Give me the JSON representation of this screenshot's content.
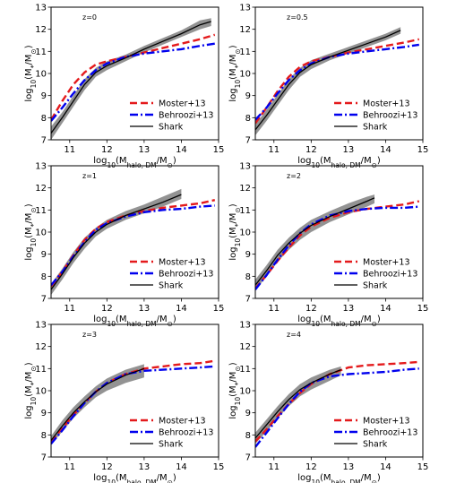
{
  "chart_data": [
    {
      "type": "line",
      "annotation": "z=0",
      "xlabel": "log10(Mhalo, DM/M⊙)",
      "ylabel": "log10(M*/M⊙)",
      "xlim": [
        10.5,
        15
      ],
      "ylim": [
        7,
        13
      ],
      "xticks": [
        11,
        12,
        13,
        14,
        15
      ],
      "yticks": [
        7,
        8,
        9,
        10,
        11,
        12,
        13
      ],
      "legend_position": "lower-right",
      "series": [
        {
          "name": "Moster+13",
          "color": "#e41a1c",
          "style": "dashed",
          "x": [
            10.5,
            10.8,
            11.1,
            11.4,
            11.7,
            12.0,
            12.5,
            13.0,
            13.5,
            14.0,
            14.5,
            14.9
          ],
          "y": [
            7.9,
            8.75,
            9.5,
            10.05,
            10.4,
            10.55,
            10.75,
            10.95,
            11.15,
            11.35,
            11.55,
            11.75
          ]
        },
        {
          "name": "Behroozi+13",
          "color": "#0000ee",
          "style": "dashdot",
          "x": [
            10.5,
            10.8,
            11.1,
            11.4,
            11.7,
            12.0,
            12.5,
            13.0,
            13.5,
            14.0,
            14.5,
            14.9
          ],
          "y": [
            7.85,
            8.45,
            9.1,
            9.7,
            10.15,
            10.45,
            10.75,
            10.9,
            11.0,
            11.1,
            11.25,
            11.35
          ]
        },
        {
          "name": "Shark",
          "color": "#000000",
          "style": "solid",
          "x": [
            10.5,
            10.8,
            11.1,
            11.4,
            11.7,
            12.0,
            12.5,
            13.0,
            13.5,
            14.0,
            14.5,
            14.8
          ],
          "y": [
            7.3,
            8.0,
            8.75,
            9.5,
            10.05,
            10.35,
            10.7,
            11.1,
            11.45,
            11.8,
            12.2,
            12.35
          ],
          "band_lower": [
            7.0,
            7.75,
            8.5,
            9.25,
            9.85,
            10.15,
            10.55,
            10.95,
            11.3,
            11.65,
            12.0,
            12.15
          ],
          "band_upper": [
            7.6,
            8.25,
            9.0,
            9.75,
            10.25,
            10.55,
            10.85,
            11.25,
            11.6,
            11.95,
            12.4,
            12.5
          ]
        }
      ]
    },
    {
      "type": "line",
      "annotation": "z=0.5",
      "xlabel": "log10(Mhalo, DM/M⊙)",
      "ylabel": "log10(M*/M⊙)",
      "xlim": [
        10.5,
        15
      ],
      "ylim": [
        7,
        13
      ],
      "xticks": [
        11,
        12,
        13,
        14,
        15
      ],
      "yticks": [
        7,
        8,
        9,
        10,
        11,
        12,
        13
      ],
      "legend_position": "lower-right",
      "series": [
        {
          "name": "Moster+13",
          "color": "#e41a1c",
          "style": "dashed",
          "x": [
            10.5,
            10.8,
            11.1,
            11.4,
            11.7,
            12.0,
            12.5,
            13.0,
            13.5,
            14.0,
            14.5,
            14.9
          ],
          "y": [
            7.75,
            8.45,
            9.2,
            9.85,
            10.3,
            10.55,
            10.75,
            10.95,
            11.1,
            11.25,
            11.4,
            11.55
          ]
        },
        {
          "name": "Behroozi+13",
          "color": "#0000ee",
          "style": "dashdot",
          "x": [
            10.5,
            10.8,
            11.1,
            11.4,
            11.7,
            12.0,
            12.5,
            13.0,
            13.5,
            14.0,
            14.5,
            14.9
          ],
          "y": [
            7.9,
            8.45,
            9.1,
            9.7,
            10.15,
            10.45,
            10.75,
            10.9,
            11.0,
            11.1,
            11.2,
            11.3
          ]
        },
        {
          "name": "Shark",
          "color": "#000000",
          "style": "solid",
          "x": [
            10.5,
            10.8,
            11.1,
            11.4,
            11.7,
            12.0,
            12.5,
            13.0,
            13.5,
            14.0,
            14.4
          ],
          "y": [
            7.45,
            8.1,
            8.8,
            9.5,
            10.05,
            10.4,
            10.75,
            11.05,
            11.35,
            11.65,
            11.95
          ],
          "band_lower": [
            7.2,
            7.85,
            8.55,
            9.25,
            9.85,
            10.2,
            10.6,
            10.9,
            11.2,
            11.5,
            11.8
          ],
          "band_upper": [
            7.7,
            8.35,
            9.05,
            9.75,
            10.25,
            10.6,
            10.9,
            11.2,
            11.5,
            11.8,
            12.1
          ]
        }
      ]
    },
    {
      "type": "line",
      "annotation": "z=1",
      "xlabel": "log10(Mhalo, DM/M⊙)",
      "ylabel": "log10(M*/M⊙)",
      "xlim": [
        10.5,
        15
      ],
      "ylim": [
        7,
        13
      ],
      "xticks": [
        11,
        12,
        13,
        14,
        15
      ],
      "yticks": [
        7,
        8,
        9,
        10,
        11,
        12,
        13
      ],
      "legend_position": "lower-right",
      "series": [
        {
          "name": "Moster+13",
          "color": "#e41a1c",
          "style": "dashed",
          "x": [
            10.5,
            10.8,
            11.1,
            11.4,
            11.7,
            12.0,
            12.5,
            13.0,
            13.5,
            14.0,
            14.5,
            14.9
          ],
          "y": [
            7.55,
            8.2,
            8.95,
            9.65,
            10.15,
            10.45,
            10.75,
            10.95,
            11.1,
            11.2,
            11.3,
            11.45
          ]
        },
        {
          "name": "Behroozi+13",
          "color": "#0000ee",
          "style": "dashdot",
          "x": [
            10.5,
            10.8,
            11.1,
            11.4,
            11.7,
            12.0,
            12.5,
            13.0,
            13.5,
            14.0,
            14.5,
            14.9
          ],
          "y": [
            7.6,
            8.2,
            8.9,
            9.55,
            10.1,
            10.4,
            10.7,
            10.9,
            11.0,
            11.05,
            11.15,
            11.2
          ]
        },
        {
          "name": "Shark",
          "color": "#000000",
          "style": "solid",
          "x": [
            10.5,
            10.8,
            11.1,
            11.4,
            11.7,
            12.0,
            12.5,
            13.0,
            13.5,
            14.0
          ],
          "y": [
            7.4,
            8.1,
            8.85,
            9.5,
            10.0,
            10.35,
            10.75,
            11.05,
            11.35,
            11.7
          ],
          "band_lower": [
            7.15,
            7.85,
            8.6,
            9.25,
            9.8,
            10.15,
            10.55,
            10.85,
            11.15,
            11.5
          ],
          "band_upper": [
            7.65,
            8.35,
            9.1,
            9.75,
            10.2,
            10.55,
            10.95,
            11.25,
            11.6,
            11.95
          ]
        }
      ]
    },
    {
      "type": "line",
      "annotation": "z=2",
      "xlabel": "log10(Mhalo, DM/M⊙)",
      "ylabel": "log10(M*/M⊙)",
      "xlim": [
        10.5,
        15
      ],
      "ylim": [
        7,
        13
      ],
      "xticks": [
        11,
        12,
        13,
        14,
        15
      ],
      "yticks": [
        7,
        8,
        9,
        10,
        11,
        12,
        13
      ],
      "legend_position": "lower-right",
      "series": [
        {
          "name": "Moster+13",
          "color": "#e41a1c",
          "style": "dashed",
          "x": [
            10.5,
            10.8,
            11.1,
            11.4,
            11.7,
            12.0,
            12.5,
            13.0,
            13.5,
            14.0,
            14.5,
            14.9
          ],
          "y": [
            7.45,
            8.05,
            8.7,
            9.3,
            9.85,
            10.25,
            10.65,
            10.9,
            11.05,
            11.15,
            11.25,
            11.4
          ]
        },
        {
          "name": "Behroozi+13",
          "color": "#0000ee",
          "style": "dashdot",
          "x": [
            10.5,
            10.8,
            11.1,
            11.4,
            11.7,
            12.0,
            12.5,
            13.0,
            13.5,
            14.0,
            14.5,
            14.9
          ],
          "y": [
            7.4,
            8.05,
            8.75,
            9.4,
            9.95,
            10.35,
            10.75,
            10.95,
            11.05,
            11.1,
            11.1,
            11.15
          ]
        },
        {
          "name": "Shark",
          "color": "#000000",
          "style": "solid",
          "x": [
            10.5,
            10.8,
            11.1,
            11.4,
            11.7,
            12.0,
            12.5,
            13.0,
            13.5,
            13.7
          ],
          "y": [
            7.6,
            8.25,
            8.95,
            9.5,
            9.95,
            10.3,
            10.7,
            11.05,
            11.4,
            11.55
          ],
          "band_lower": [
            7.35,
            8.0,
            8.65,
            9.2,
            9.65,
            10.0,
            10.45,
            10.8,
            11.15,
            11.3
          ],
          "band_upper": [
            7.85,
            8.5,
            9.2,
            9.75,
            10.2,
            10.55,
            10.95,
            11.3,
            11.6,
            11.7
          ]
        }
      ]
    },
    {
      "type": "line",
      "annotation": "z=3",
      "xlabel": "log10(Mhalo, DM/M⊙)",
      "ylabel": "log10(M*/M⊙)",
      "xlim": [
        10.5,
        15
      ],
      "ylim": [
        7,
        13
      ],
      "xticks": [
        11,
        12,
        13,
        14,
        15
      ],
      "yticks": [
        7,
        8,
        9,
        10,
        11,
        12,
        13
      ],
      "legend_position": "lower-right",
      "series": [
        {
          "name": "Moster+13",
          "color": "#e41a1c",
          "style": "dashed",
          "x": [
            10.5,
            10.8,
            11.1,
            11.4,
            11.7,
            12.0,
            12.5,
            13.0,
            13.5,
            14.0,
            14.5,
            14.9
          ],
          "y": [
            7.7,
            8.3,
            8.9,
            9.45,
            9.95,
            10.35,
            10.75,
            11.0,
            11.1,
            11.2,
            11.25,
            11.35
          ]
        },
        {
          "name": "Behroozi+13",
          "color": "#0000ee",
          "style": "dashdot",
          "x": [
            10.5,
            10.8,
            11.1,
            11.4,
            11.7,
            12.0,
            12.5,
            13.0,
            13.5,
            14.0,
            14.5,
            14.9
          ],
          "y": [
            7.6,
            8.2,
            8.85,
            9.45,
            9.95,
            10.35,
            10.75,
            10.9,
            10.95,
            11.0,
            11.05,
            11.1
          ]
        },
        {
          "name": "Shark",
          "color": "#000000",
          "style": "solid",
          "x": [
            10.5,
            10.8,
            11.1,
            11.4,
            11.7,
            12.0,
            12.5,
            13.0
          ],
          "y": [
            7.75,
            8.4,
            9.0,
            9.5,
            9.95,
            10.3,
            10.7,
            11.0
          ],
          "band_lower": [
            7.55,
            8.15,
            8.75,
            9.25,
            9.7,
            10.0,
            10.35,
            10.6
          ],
          "band_upper": [
            7.95,
            8.65,
            9.25,
            9.75,
            10.2,
            10.55,
            10.95,
            11.2
          ]
        }
      ]
    },
    {
      "type": "line",
      "annotation": "z=4",
      "xlabel": "log10(Mhalo, DM/M⊙)",
      "ylabel": "log10(M*/M⊙)",
      "xlim": [
        10.5,
        15
      ],
      "ylim": [
        7,
        13
      ],
      "xticks": [
        11,
        12,
        13,
        14,
        15
      ],
      "yticks": [
        7,
        8,
        9,
        10,
        11,
        12,
        13
      ],
      "legend_position": "lower-right",
      "series": [
        {
          "name": "Moster+13",
          "color": "#e41a1c",
          "style": "dashed",
          "x": [
            10.5,
            10.8,
            11.1,
            11.4,
            11.7,
            12.0,
            12.5,
            13.0,
            13.5,
            14.0,
            14.5,
            14.9
          ],
          "y": [
            7.7,
            8.25,
            8.85,
            9.4,
            9.9,
            10.3,
            10.75,
            11.05,
            11.15,
            11.2,
            11.25,
            11.3
          ]
        },
        {
          "name": "Behroozi+13",
          "color": "#0000ee",
          "style": "dashdot",
          "x": [
            10.5,
            10.8,
            11.1,
            11.4,
            11.7,
            12.0,
            12.5,
            13.0,
            13.5,
            14.0,
            14.5,
            14.9
          ],
          "y": [
            7.45,
            8.1,
            8.75,
            9.4,
            9.95,
            10.35,
            10.65,
            10.75,
            10.8,
            10.85,
            10.95,
            11.0
          ]
        },
        {
          "name": "Shark",
          "color": "#000000",
          "style": "solid",
          "x": [
            10.5,
            10.8,
            11.1,
            11.4,
            11.7,
            12.0,
            12.5,
            12.8
          ],
          "y": [
            7.85,
            8.45,
            9.05,
            9.6,
            10.05,
            10.35,
            10.75,
            10.95
          ],
          "band_lower": [
            7.6,
            8.15,
            8.75,
            9.3,
            9.75,
            10.05,
            10.45,
            10.7
          ],
          "band_upper": [
            8.1,
            8.7,
            9.3,
            9.85,
            10.3,
            10.6,
            10.95,
            11.1
          ]
        }
      ]
    }
  ]
}
